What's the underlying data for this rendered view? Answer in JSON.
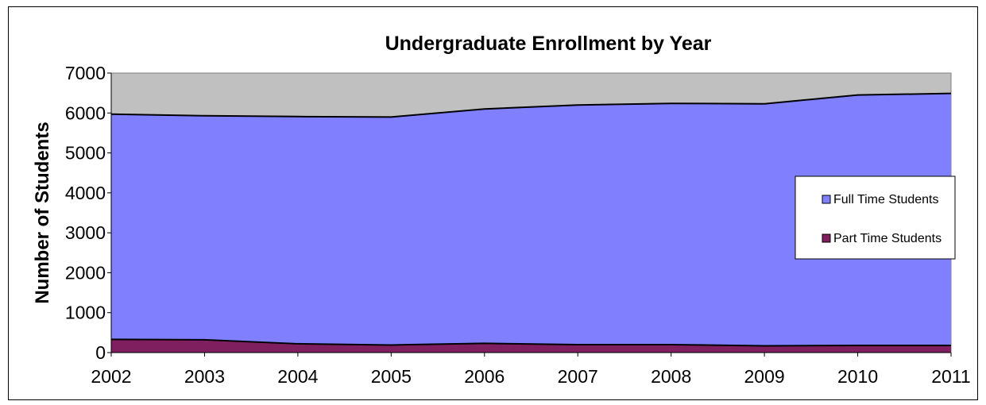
{
  "chart_data": {
    "type": "area",
    "stacked": true,
    "title": "Undergraduate Enrollment by Year",
    "xlabel": "",
    "ylabel": "Number of Students",
    "x": [
      "2002",
      "2003",
      "2004",
      "2005",
      "2006",
      "2007",
      "2008",
      "2009",
      "2010",
      "2011"
    ],
    "ylim": [
      0,
      7000
    ],
    "yticks": [
      "0",
      "1000",
      "2000",
      "3000",
      "4000",
      "5000",
      "6000",
      "7000"
    ],
    "grid": false,
    "legend_position": "right",
    "plot_background": "#c0c0c0",
    "series": [
      {
        "name": "Part Time Students",
        "color": "#7f1f5f",
        "values": [
          330,
          320,
          220,
          190,
          230,
          200,
          200,
          170,
          180,
          180
        ]
      },
      {
        "name": "Full Time Students",
        "color": "#8080ff",
        "values": [
          5640,
          5610,
          5690,
          5710,
          5870,
          6000,
          6040,
          6060,
          6270,
          6310
        ]
      }
    ]
  }
}
